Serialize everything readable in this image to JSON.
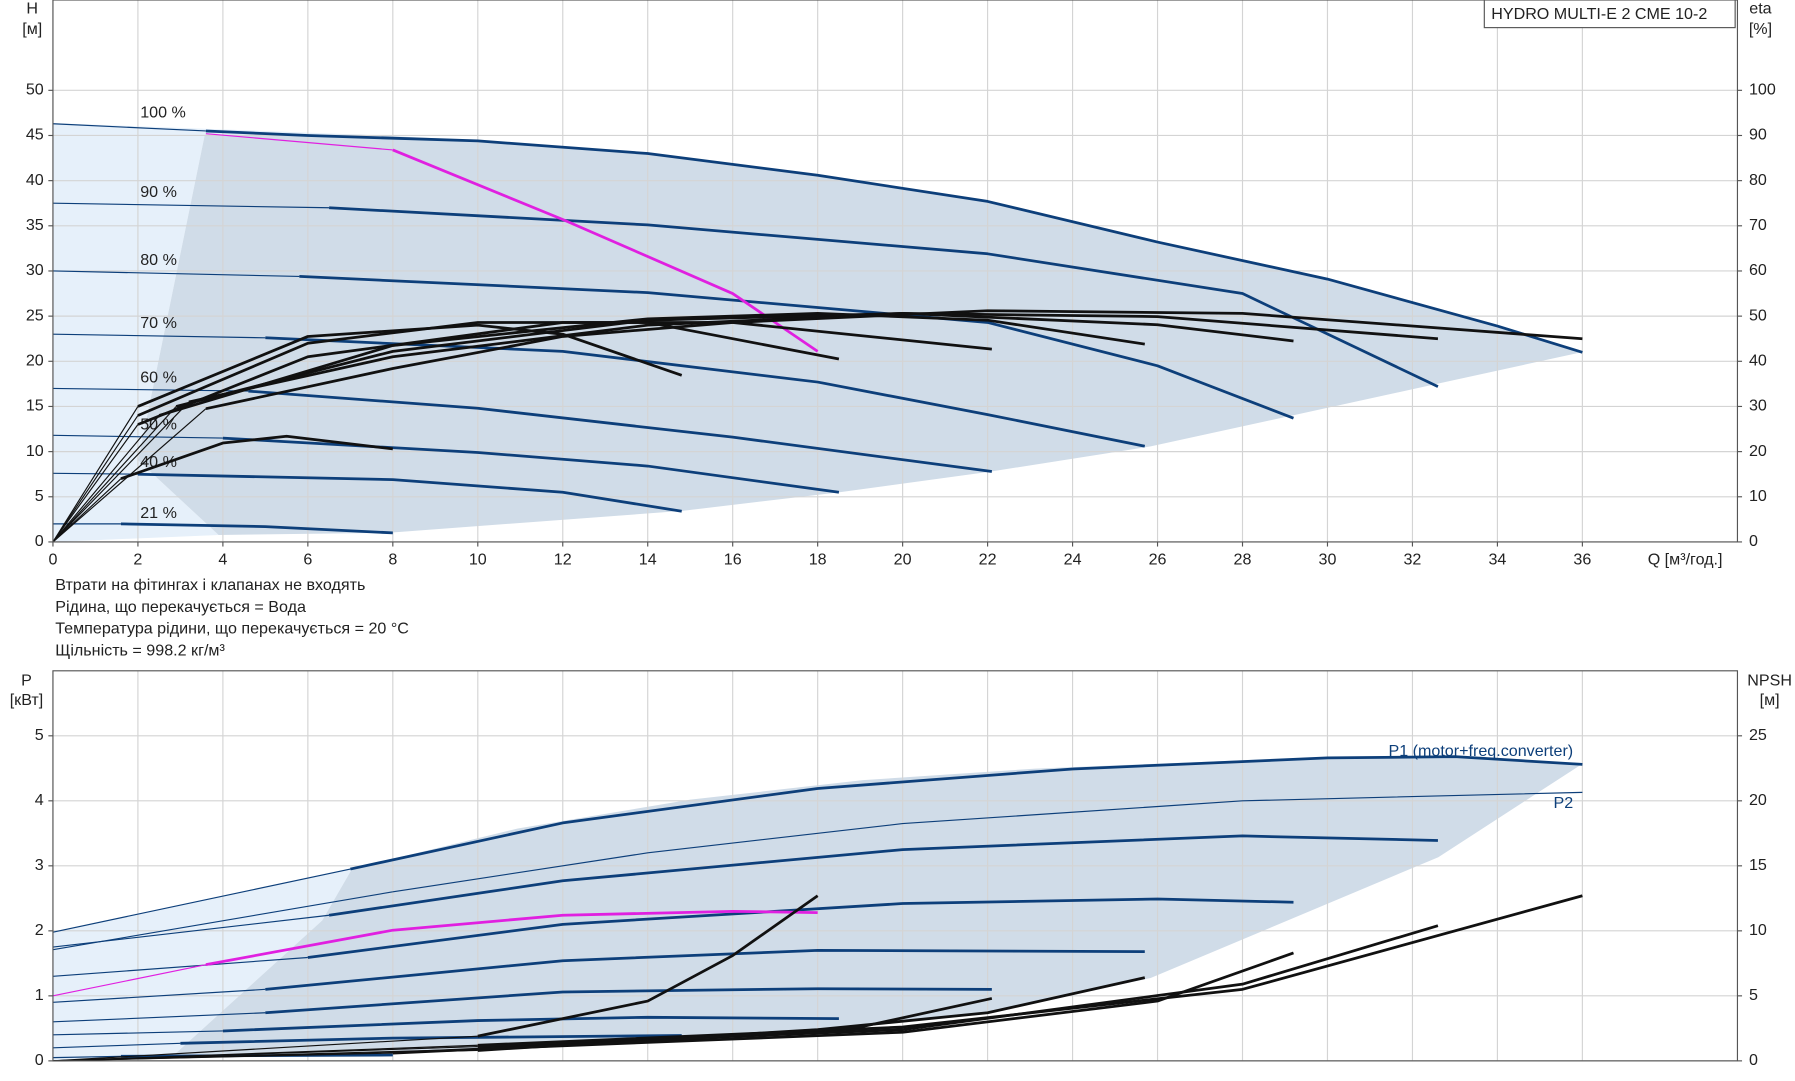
{
  "chart_data": [
    {
      "type": "line",
      "title": "HYDRO MULTI-E 2 CME 10-2",
      "y_label": "H",
      "y_unit": "[м]",
      "y2_label": "eta",
      "y2_unit": "[%]",
      "x_label": "Q [м³/год.]",
      "xlim": [
        0,
        39.65
      ],
      "xticks": [
        0,
        2,
        4,
        6,
        8,
        10,
        12,
        14,
        16,
        18,
        20,
        22,
        24,
        26,
        28,
        30,
        32,
        34,
        36
      ],
      "ylim": [
        0,
        60
      ],
      "yticks": [
        0,
        5,
        10,
        15,
        20,
        25,
        30,
        35,
        40,
        45,
        50
      ],
      "y2lim": [
        0,
        120
      ],
      "y2ticks": [
        0,
        10,
        20,
        30,
        40,
        50,
        60,
        70,
        80,
        90,
        100
      ],
      "grid": true,
      "series": [
        {
          "name": "100 %",
          "color": "#0d3f7a",
          "x": [
            0,
            3.6,
            6,
            10,
            14,
            18,
            22,
            26,
            30,
            34,
            36
          ],
          "values": [
            46.3,
            45.5,
            45.0,
            44.4,
            43.0,
            40.6,
            37.7,
            33.2,
            29.1,
            23.9,
            21.0
          ]
        },
        {
          "name": "90 %",
          "color": "#0d3f7a",
          "x": [
            0,
            6.5,
            14,
            22,
            28,
            32.6
          ],
          "values": [
            37.5,
            37.0,
            35.1,
            31.9,
            27.5,
            17.2
          ]
        },
        {
          "name": "80 %",
          "color": "#0d3f7a",
          "x": [
            0,
            5.8,
            14,
            22,
            26,
            29.2
          ],
          "values": [
            30.0,
            29.4,
            27.6,
            24.3,
            19.5,
            13.7
          ]
        },
        {
          "name": "70 %",
          "color": "#0d3f7a",
          "x": [
            0,
            5,
            12,
            18,
            22,
            25.7
          ],
          "values": [
            23.0,
            22.6,
            21.1,
            17.7,
            14.1,
            10.6
          ]
        },
        {
          "name": "60 %",
          "color": "#0d3f7a",
          "x": [
            0,
            4.6,
            10,
            16,
            22.1
          ],
          "values": [
            17.0,
            16.7,
            14.8,
            11.6,
            7.8
          ]
        },
        {
          "name": "50 %",
          "color": "#0d3f7a",
          "x": [
            0,
            4,
            10,
            14,
            18.5
          ],
          "values": [
            11.8,
            11.5,
            9.9,
            8.4,
            5.5
          ]
        },
        {
          "name": "40 %",
          "color": "#0d3f7a",
          "x": [
            0,
            2,
            8,
            12,
            14.8
          ],
          "values": [
            7.6,
            7.5,
            6.9,
            5.5,
            3.4
          ]
        },
        {
          "name": "21 %",
          "color": "#0d3f7a",
          "x": [
            0,
            1.6,
            5,
            8
          ],
          "values": [
            2.0,
            2.0,
            1.7,
            1.0
          ]
        },
        {
          "color": "#e020e0",
          "x": [
            3.6,
            8,
            12,
            16,
            18
          ],
          "values": [
            45.2,
            43.4,
            35.7,
            27.5,
            21.1
          ]
        },
        {
          "color": "#111111",
          "axis": "y2",
          "x": [
            0,
            3.6,
            8,
            12,
            16,
            22,
            28,
            36
          ],
          "values": [
            0,
            29.5,
            38.4,
            45.5,
            48.6,
            51.2,
            50.6,
            45.0
          ]
        },
        {
          "color": "#111111",
          "axis": "y2",
          "x": [
            0,
            3.2,
            8,
            14,
            20,
            26,
            32.6
          ],
          "values": [
            0,
            31,
            41,
            48,
            50.6,
            49.9,
            45
          ]
        },
        {
          "color": "#111111",
          "axis": "y2",
          "x": [
            0,
            2.9,
            8,
            14,
            20,
            26,
            29.2
          ],
          "values": [
            0,
            30,
            42.2,
            49.1,
            50.6,
            48.1,
            44.5
          ]
        },
        {
          "color": "#111111",
          "axis": "y2",
          "x": [
            0,
            2.5,
            8,
            14,
            18,
            22,
            25.7
          ],
          "values": [
            0,
            28,
            43.5,
            49.4,
            50.6,
            49.1,
            43.8
          ]
        },
        {
          "color": "#111111",
          "axis": "y2",
          "x": [
            0,
            2,
            6,
            12,
            16,
            22.1
          ],
          "values": [
            0,
            26,
            41,
            48.6,
            48.6,
            42.7
          ]
        },
        {
          "color": "#111111",
          "axis": "y2",
          "x": [
            0,
            2,
            6,
            10,
            14,
            18.5
          ],
          "values": [
            0,
            28,
            44,
            48.6,
            48.6,
            40.5
          ]
        },
        {
          "color": "#111111",
          "axis": "y2",
          "x": [
            0,
            2,
            6,
            10,
            12,
            14.8
          ],
          "values": [
            0,
            30,
            45.5,
            48,
            46,
            36.9
          ]
        },
        {
          "color": "#111111",
          "axis": "y2",
          "x": [
            0,
            1.6,
            4,
            5.5,
            8
          ],
          "values": [
            0,
            14,
            21.9,
            23.4,
            20.6
          ]
        }
      ]
    },
    {
      "type": "line",
      "y_label": "P",
      "y_unit": "[кВт]",
      "y2_label": "NPSH",
      "y2_unit": "[м]",
      "xlim": [
        0,
        39.65
      ],
      "ylim": [
        0,
        6
      ],
      "yticks": [
        0,
        1,
        2,
        3,
        4,
        5
      ],
      "y2lim": [
        0,
        30
      ],
      "y2ticks": [
        0,
        5,
        10,
        15,
        20,
        25
      ],
      "grid": true,
      "series": [
        {
          "name": "P1 (motor+freq.converter)",
          "color": "#0d3f7a",
          "x": [
            0,
            7,
            12,
            18,
            24,
            30,
            33,
            36
          ],
          "values": [
            1.98,
            2.95,
            3.66,
            4.19,
            4.49,
            4.66,
            4.68,
            4.56
          ]
        },
        {
          "name": "P2",
          "color": "#0d3f7a",
          "thin": true,
          "x": [
            0,
            8,
            14,
            20,
            28,
            36
          ],
          "values": [
            1.71,
            2.6,
            3.2,
            3.65,
            4.0,
            4.13
          ]
        },
        {
          "color": "#0d3f7a",
          "x": [
            0,
            6.5,
            12,
            20,
            28,
            32.6
          ],
          "values": [
            1.75,
            2.24,
            2.77,
            3.25,
            3.46,
            3.39
          ]
        },
        {
          "color": "#0d3f7a",
          "x": [
            0,
            6,
            12,
            20,
            26,
            29.2
          ],
          "values": [
            1.3,
            1.59,
            2.1,
            2.42,
            2.49,
            2.44
          ]
        },
        {
          "color": "#0d3f7a",
          "x": [
            0,
            5,
            12,
            18,
            25.7
          ],
          "values": [
            0.9,
            1.1,
            1.54,
            1.7,
            1.68
          ]
        },
        {
          "color": "#0d3f7a",
          "x": [
            0,
            5,
            12,
            18,
            22.1
          ],
          "values": [
            0.6,
            0.74,
            1.06,
            1.11,
            1.1
          ]
        },
        {
          "color": "#0d3f7a",
          "x": [
            0,
            4,
            10,
            14,
            18.5
          ],
          "values": [
            0.4,
            0.46,
            0.62,
            0.67,
            0.65
          ]
        },
        {
          "color": "#0d3f7a",
          "x": [
            0,
            3,
            8,
            14.8
          ],
          "values": [
            0.2,
            0.27,
            0.35,
            0.39
          ]
        },
        {
          "color": "#0d3f7a",
          "x": [
            0,
            1.6,
            8
          ],
          "values": [
            0.05,
            0.07,
            0.09
          ]
        },
        {
          "color": "#e020e0",
          "x": [
            0,
            3.6,
            8,
            12,
            16,
            18
          ],
          "values": [
            1.0,
            1.48,
            2.01,
            2.24,
            2.3,
            2.28
          ]
        },
        {
          "color": "#111111",
          "axis": "y2",
          "x": [
            0,
            10,
            20,
            28,
            36
          ],
          "values": [
            0,
            1.2,
            2.6,
            5.5,
            12.7
          ]
        },
        {
          "color": "#111111",
          "axis": "y2",
          "x": [
            0,
            10,
            20,
            28,
            32.6
          ],
          "values": [
            0,
            1.1,
            2.4,
            5.9,
            10.4
          ]
        },
        {
          "color": "#111111",
          "axis": "y2",
          "x": [
            0,
            10,
            20,
            26,
            29.2
          ],
          "values": [
            0,
            0.9,
            2.2,
            4.6,
            8.3
          ]
        },
        {
          "color": "#111111",
          "axis": "y2",
          "x": [
            0,
            10,
            18,
            22,
            25.7
          ],
          "values": [
            0,
            0.8,
            2.4,
            3.7,
            6.4
          ]
        },
        {
          "color": "#111111",
          "axis": "y2",
          "x": [
            0,
            8,
            14,
            19,
            22.1
          ],
          "values": [
            0,
            0.6,
            1.5,
            2.6,
            4.8
          ]
        },
        {
          "color": "#111111",
          "axis": "y2",
          "x": [
            0,
            10,
            14,
            16,
            18
          ],
          "values": [
            0,
            1.9,
            4.6,
            8.1,
            12.7
          ]
        }
      ]
    }
  ],
  "notes": [
    "Втрати на фітингах і клапанах не входять",
    "Рідина, що перекачується = Вода",
    "Температура рідини, що перекачується = 20 °C",
    "Щільність = 998.2 кг/м³"
  ]
}
